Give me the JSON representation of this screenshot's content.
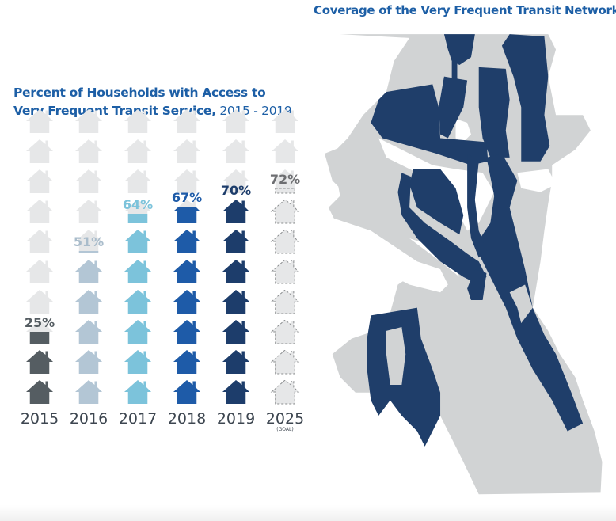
{
  "chart_data": {
    "type": "pictogram",
    "title": "Percent of Households with Access to Very Frequent Transit Service, 2015 - 2019",
    "title_bold": [
      "Percent of Households with Access to",
      "Very Frequent Transit Service,"
    ],
    "title_years": "2015 - 2019",
    "xlabel": "",
    "ylabel": "",
    "ylim": [
      0,
      100
    ],
    "icon": "house-icon",
    "icons_per_column": 10,
    "categories": [
      "2015",
      "2016",
      "2017",
      "2018",
      "2019",
      "2025"
    ],
    "category_notes": {
      "2025": "(GOAL)"
    },
    "values": [
      25,
      51,
      64,
      67,
      70,
      72
    ],
    "labels": [
      "25%",
      "51%",
      "64%",
      "67%",
      "70%",
      "72%"
    ],
    "colors": [
      "#555d62",
      "#b3c6d5",
      "#7cc3db",
      "#1e5ba8",
      "#1d3d6b",
      "#d9d9d9"
    ],
    "empty_color": "#e6e7e8",
    "goal_style": "dashed-outline"
  },
  "chart": {
    "title_line1": "Percent of Households with Access to",
    "title_line2_bold": "Very Frequent Transit Service,",
    "title_line2_years": " 2015 - 2019",
    "goal_note": "(GOAL)"
  },
  "map": {
    "title": "Coverage of the Very Frequent Transit Network",
    "land_color": "#d1d3d4",
    "coverage_color": "#1f3e6a",
    "water_color": "#ffffff"
  }
}
